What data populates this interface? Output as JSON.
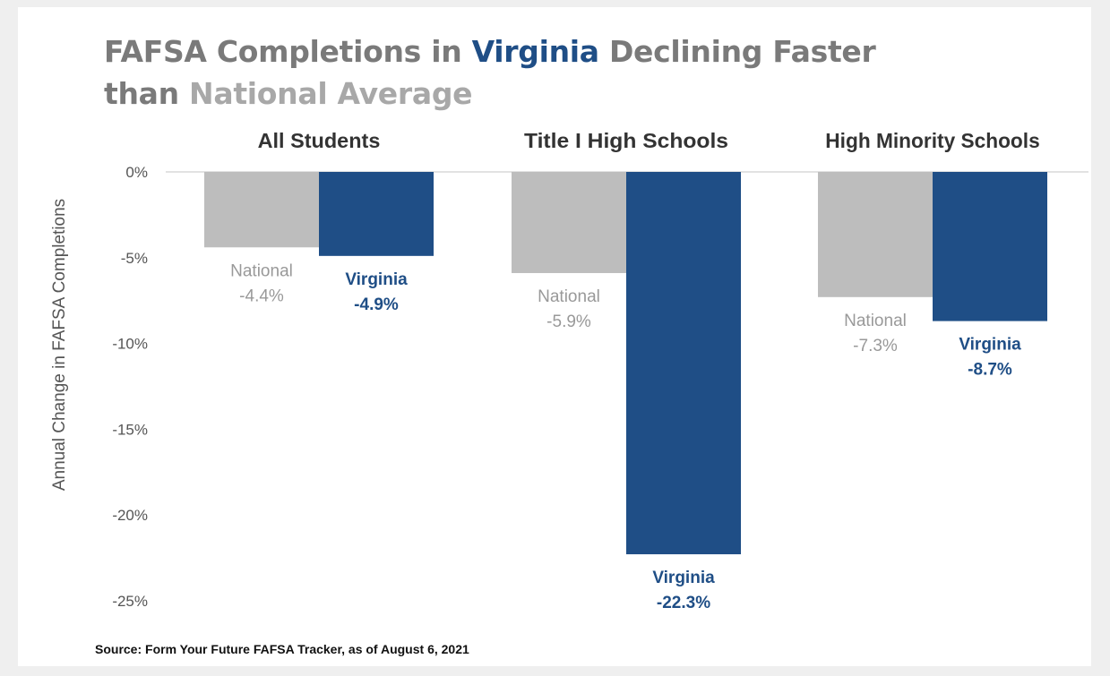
{
  "title": {
    "part1": "FAFSA Completions in ",
    "highlight": "Virginia",
    "part2": " Declining Faster",
    "line2_part1": "than ",
    "line2_highlight": "National Average"
  },
  "colors": {
    "national": "#bdbdbd",
    "virginia": "#1f4e86",
    "national_label": "#999999",
    "axis_text": "#555555",
    "title_gray": "#7a7a7a"
  },
  "source": "Source: Form Your Future FAFSA Tracker, as of August 6, 2021",
  "chart_data": {
    "type": "bar",
    "title": "FAFSA Completions in Virginia Declining Faster than National Average",
    "ylabel": "Annual  Change in FAFSA Completions",
    "xlabel": "",
    "categories": [
      "All Students",
      "Title I High Schools",
      "High Minority Schools"
    ],
    "series": [
      {
        "name": "National",
        "values": [
          -4.4,
          -5.9,
          -7.3
        ],
        "labels": [
          "-4.4%",
          "-5.9%",
          "-7.3%"
        ]
      },
      {
        "name": "Virginia",
        "values": [
          -4.9,
          -22.3,
          -8.7
        ],
        "labels": [
          "-4.9%",
          "-22.3%",
          "-8.7%"
        ]
      }
    ],
    "ylim": [
      -25,
      0
    ],
    "yticks": [
      0,
      -5,
      -10,
      -15,
      -20,
      -25
    ],
    "ytick_labels": [
      "0%",
      "-5%",
      "-10%",
      "-15%",
      "-20%",
      "-25%"
    ],
    "grid": false,
    "legend": "none"
  }
}
